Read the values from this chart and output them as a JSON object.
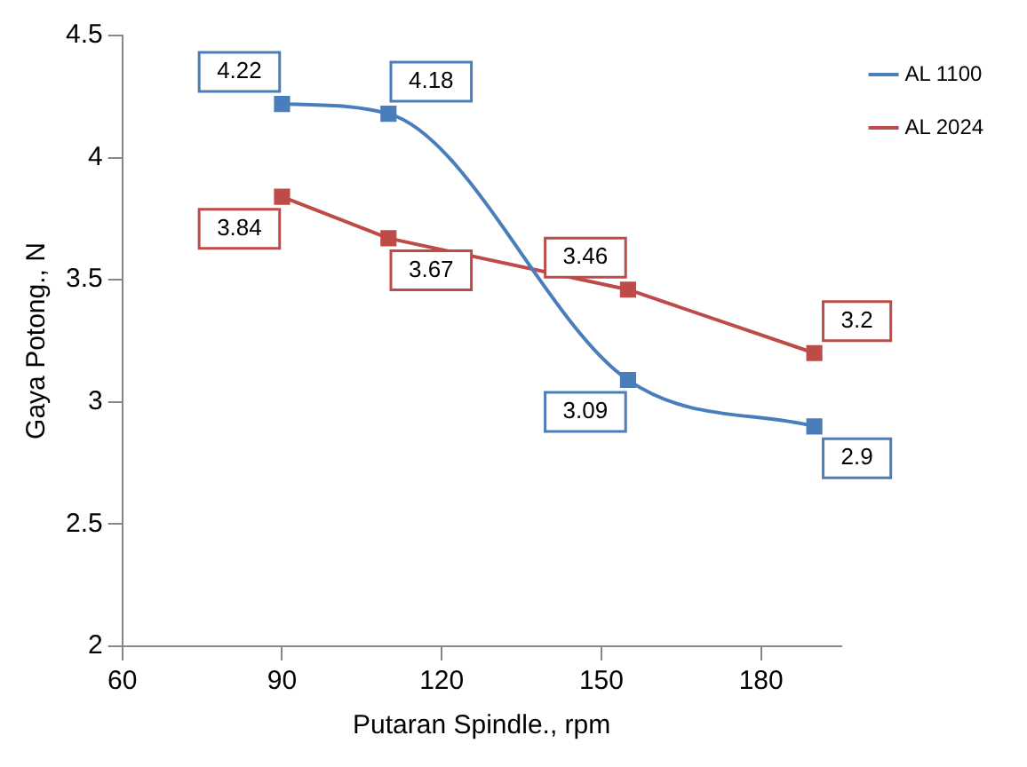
{
  "chart_data": {
    "type": "line",
    "xlabel": "Putaran Spindle., rpm",
    "ylabel": "Gaya Potong., N",
    "x": [
      90,
      110,
      155,
      190
    ],
    "series": [
      {
        "name": "AL 1100",
        "color": "#4a7ebb",
        "values": [
          4.22,
          4.18,
          3.09,
          2.9
        ]
      },
      {
        "name": "AL 2024",
        "color": "#be4b48",
        "values": [
          3.84,
          3.67,
          3.46,
          3.2
        ]
      }
    ],
    "xlim": [
      60,
      195
    ],
    "xticks": [
      60,
      90,
      120,
      150,
      180
    ],
    "ylim": [
      2,
      4.5
    ],
    "yticks": [
      2,
      2.5,
      3,
      3.5,
      4,
      4.5
    ],
    "grid": false,
    "legend": "top right",
    "marker": "square",
    "line_style": "solid",
    "data_labels": true
  }
}
